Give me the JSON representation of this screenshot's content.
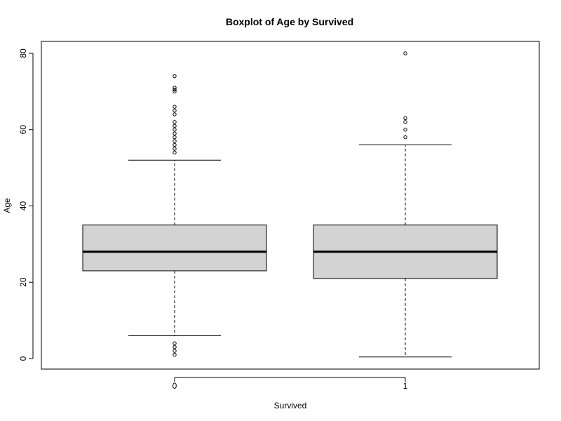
{
  "chart_data": {
    "type": "boxplot",
    "title": "Boxplot of Age by Survived",
    "xlabel": "Survived",
    "ylabel": "Age",
    "ylim": [
      0,
      80
    ],
    "y_ticks": [
      0,
      20,
      40,
      60,
      80
    ],
    "grid": false,
    "categories": [
      "0",
      "1"
    ],
    "boxes": [
      {
        "category": "0",
        "whisker_low": 6,
        "q1": 23,
        "median": 28,
        "q3": 35,
        "whisker_high": 52,
        "outliers": [
          1,
          2,
          3,
          4,
          54,
          55,
          56,
          57,
          58,
          59,
          60,
          61,
          62,
          64,
          65,
          66,
          70,
          70.5,
          71,
          74
        ]
      },
      {
        "category": "1",
        "whisker_low": 0.42,
        "q1": 21,
        "median": 28,
        "q3": 35,
        "whisker_high": 56,
        "outliers": [
          58,
          60,
          62,
          63,
          80
        ]
      }
    ],
    "colors": {
      "box_fill": "#d3d3d3",
      "stroke": "#000000"
    }
  }
}
